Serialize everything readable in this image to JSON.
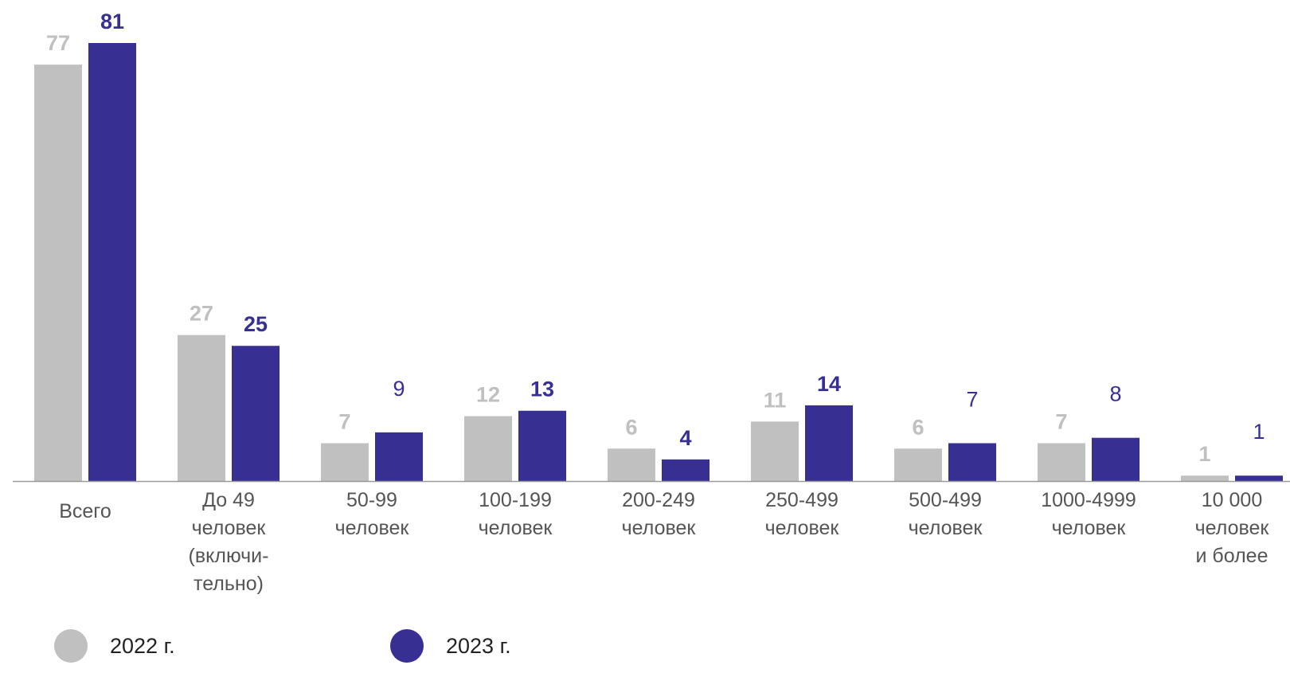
{
  "chart_data": {
    "type": "bar",
    "categories": [
      [
        "Всего"
      ],
      [
        "До 49",
        "человек",
        "(включи-",
        "тельно)"
      ],
      [
        "50-99",
        "человек"
      ],
      [
        "100-199",
        "человек"
      ],
      [
        "200-249",
        "человек"
      ],
      [
        "250-499",
        "человек"
      ],
      [
        "500-499",
        "человек"
      ],
      [
        "1000-4999",
        "человек"
      ],
      [
        "10 000",
        "человек",
        "и более"
      ]
    ],
    "series": [
      {
        "name": "2022 г.",
        "color": "#c0c0c0",
        "values": [
          77,
          27,
          7,
          12,
          6,
          11,
          6,
          7,
          1
        ],
        "labels": [
          "77",
          "27",
          "7",
          "12",
          "6",
          "11",
          "6",
          "7",
          "1"
        ]
      },
      {
        "name": "2023 г.",
        "color": "#373092",
        "values": [
          81,
          25,
          9,
          13,
          4,
          14,
          7,
          8,
          1
        ],
        "labels": [
          "81",
          "25",
          "9",
          "13",
          "4",
          "14",
          "7",
          "8",
          "1"
        ]
      }
    ],
    "ylim": [
      0,
      81
    ],
    "grid": false,
    "legend": "bottom-left"
  }
}
